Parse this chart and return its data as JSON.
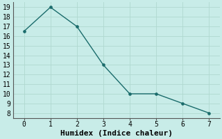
{
  "x": [
    0,
    1,
    2,
    3,
    4,
    5,
    6,
    7
  ],
  "y": [
    16.5,
    19.0,
    17.0,
    13.0,
    10.0,
    10.0,
    9.0,
    8.0
  ],
  "line_color": "#1a6b6b",
  "marker": "o",
  "marker_size": 2.5,
  "xlabel": "Humidex (Indice chaleur)",
  "ylim": [
    7.5,
    19.5
  ],
  "xlim": [
    -0.4,
    7.4
  ],
  "yticks": [
    8,
    9,
    10,
    11,
    12,
    13,
    14,
    15,
    16,
    17,
    18,
    19
  ],
  "xticks": [
    0,
    1,
    2,
    3,
    4,
    5,
    6,
    7
  ],
  "background_color": "#c8ece8",
  "grid_color": "#b0d8d0",
  "tick_label_fontsize": 7,
  "xlabel_fontsize": 8,
  "linewidth": 1.0
}
